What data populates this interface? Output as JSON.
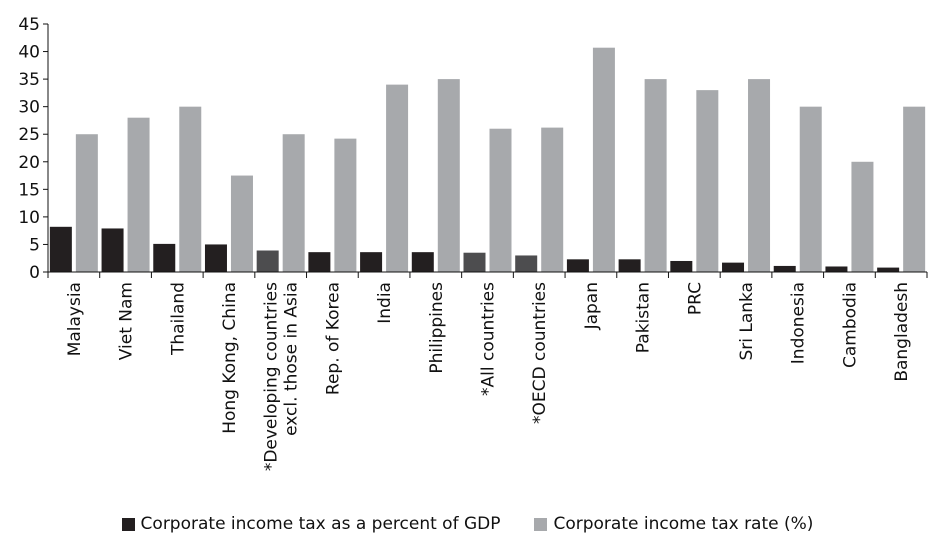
{
  "chart_data": {
    "type": "bar",
    "categories": [
      "Malaysia",
      "Viet Nam",
      "Thailand",
      "Hong  Kong, China",
      "*Developing countries\nexcl. those in Asia",
      "Rep. of Korea",
      "India",
      "Philippines",
      "*All countries",
      "*OECD countries",
      "Japan",
      "Pakistan",
      "PRC",
      "Sri Lanka",
      "Indonesia",
      "Cambodia",
      "Bangladesh"
    ],
    "series": [
      {
        "name": "Corporate income tax as a percent of GDP",
        "values": [
          8.2,
          7.9,
          5.1,
          5.0,
          3.9,
          3.6,
          3.6,
          3.6,
          3.5,
          3.0,
          2.3,
          2.3,
          2.0,
          1.7,
          1.1,
          1.0,
          0.8
        ],
        "colors": [
          "#231f20",
          "#231f20",
          "#231f20",
          "#231f20",
          "#4d4d4f",
          "#231f20",
          "#231f20",
          "#231f20",
          "#4d4d4f",
          "#4d4d4f",
          "#231f20",
          "#231f20",
          "#231f20",
          "#231f20",
          "#231f20",
          "#231f20",
          "#231f20"
        ]
      },
      {
        "name": "Corporate income tax rate (%)",
        "values": [
          25,
          28,
          30,
          17.5,
          25,
          24.2,
          34,
          35,
          26,
          26.2,
          40.7,
          35,
          33,
          35,
          30,
          20,
          30
        ],
        "color": "#a7a9ac"
      }
    ],
    "ylim": [
      0,
      45
    ],
    "yticks": [
      "0",
      "5",
      "10",
      "15",
      "20",
      "25",
      "30",
      "35",
      "40",
      "45"
    ],
    "grid": false,
    "legend_position": "bottom",
    "xlabel": "",
    "ylabel": ""
  }
}
